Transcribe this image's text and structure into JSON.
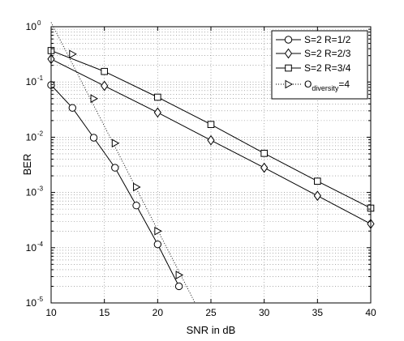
{
  "chart_data": {
    "type": "line",
    "xlabel": "SNR in dB",
    "ylabel": "BER",
    "xlim": [
      10,
      40
    ],
    "ylim": [
      1e-05,
      1
    ],
    "y_scale": "log",
    "grid": true,
    "legend_position": "top-right",
    "x_ticks": [
      {
        "value": 10,
        "label": "10"
      },
      {
        "value": 15,
        "label": "15"
      },
      {
        "value": 20,
        "label": "20"
      },
      {
        "value": 25,
        "label": "25"
      },
      {
        "value": 30,
        "label": "30"
      },
      {
        "value": 35,
        "label": "35"
      },
      {
        "value": 40,
        "label": "40"
      }
    ],
    "y_ticks": [
      {
        "value": 1,
        "base": "10",
        "exp": "0"
      },
      {
        "value": 0.1,
        "base": "10",
        "exp": "-1"
      },
      {
        "value": 0.01,
        "base": "10",
        "exp": "-2"
      },
      {
        "value": 0.001,
        "base": "10",
        "exp": "-3"
      },
      {
        "value": 0.0001,
        "base": "10",
        "exp": "-4"
      },
      {
        "value": 1e-05,
        "base": "10",
        "exp": "-5"
      }
    ],
    "series": [
      {
        "name": "S=2 R=1/2",
        "name_main": "S=2 R=1/2",
        "name_sub": "",
        "name_tail": "",
        "marker": "circle",
        "line": "solid",
        "x": [
          10,
          12,
          14,
          16,
          18,
          20,
          22
        ],
        "y": [
          0.088,
          0.034,
          0.0098,
          0.0028,
          0.00058,
          0.000115,
          2e-05
        ]
      },
      {
        "name": "S=2 R=2/3",
        "name_main": "S=2 R=2/3",
        "name_sub": "",
        "name_tail": "",
        "marker": "diamond",
        "line": "solid",
        "x": [
          10,
          15,
          20,
          25,
          30,
          35,
          40
        ],
        "y": [
          0.26,
          0.085,
          0.028,
          0.0088,
          0.0028,
          0.00087,
          0.00027
        ]
      },
      {
        "name": "S=2 R=3/4",
        "name_main": "S=2 R=3/4",
        "name_sub": "",
        "name_tail": "",
        "marker": "square",
        "line": "solid",
        "x": [
          10,
          15,
          20,
          25,
          30,
          35,
          40
        ],
        "y": [
          0.37,
          0.155,
          0.053,
          0.017,
          0.0051,
          0.0016,
          0.00052
        ]
      },
      {
        "name": "O_diversity=4",
        "name_main": "O",
        "name_sub": "diversity",
        "name_tail": "=4",
        "marker": "triangle-right",
        "line": "dotted",
        "x": [
          12,
          14,
          16,
          18,
          20,
          22
        ],
        "y": [
          0.32,
          0.05,
          0.0078,
          0.00125,
          0.0002,
          3.2e-05
        ],
        "line_x": [
          10,
          23.5
        ],
        "line_y": [
          1.2,
          1.01e-05
        ]
      }
    ]
  }
}
